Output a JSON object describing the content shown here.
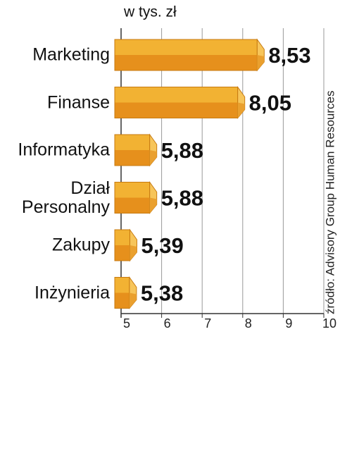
{
  "chart_data": {
    "type": "bar",
    "orientation": "horizontal",
    "title": "w tys. zł",
    "source": "źródło: Advisory Group Human Resources",
    "categories": [
      "Marketing",
      "Finanse",
      "Informatyka",
      "Dział Personalny",
      "Zakupy",
      "Inżynieria"
    ],
    "values": [
      8.53,
      8.05,
      5.88,
      5.88,
      5.39,
      5.38
    ],
    "value_labels": [
      "8,53",
      "8,05",
      "5,88",
      "5,88",
      "5,39",
      "5,38"
    ],
    "color": "#f2b233",
    "xlim": [
      5,
      10
    ],
    "xticks": [
      5,
      6,
      7,
      8,
      9,
      10
    ],
    "grid": true
  }
}
